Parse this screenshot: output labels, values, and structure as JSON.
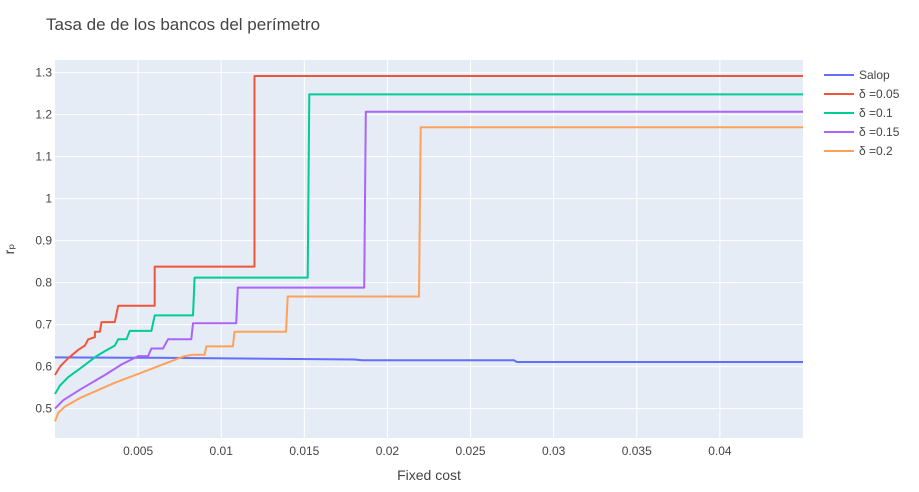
{
  "chart_data": {
    "type": "line",
    "title": "Tasa de de los bancos del perímetro",
    "xlabel": "Fixed cost",
    "ylabel": "rₚ",
    "xlim": [
      0.0,
      0.045
    ],
    "ylim": [
      0.43,
      1.33
    ],
    "x_ticks": [
      0.005,
      0.01,
      0.015,
      0.02,
      0.025,
      0.03,
      0.035,
      0.04
    ],
    "x_tick_labels": [
      "0.005",
      "0.01",
      "0.015",
      "0.02",
      "0.025",
      "0.03",
      "0.035",
      "0.04"
    ],
    "y_ticks": [
      0.5,
      0.6,
      0.7,
      0.8,
      0.9,
      1.0,
      1.1,
      1.2,
      1.3
    ],
    "y_tick_labels": [
      "0.5",
      "0.6",
      "0.7",
      "0.8",
      "0.9",
      "1",
      "1.1",
      "1.2",
      "1.3"
    ],
    "grid": true,
    "plot_background": "#e5ecf6",
    "legend_position": "top-right outside",
    "series": [
      {
        "name": "Salop",
        "color": "#636efa",
        "points": [
          [
            0.0,
            0.622
          ],
          [
            0.006,
            0.621
          ],
          [
            0.012,
            0.619
          ],
          [
            0.018,
            0.617
          ],
          [
            0.0185,
            0.615
          ],
          [
            0.0276,
            0.615
          ],
          [
            0.0278,
            0.611
          ],
          [
            0.045,
            0.611
          ]
        ]
      },
      {
        "name": "δ =0.05",
        "color": "#ef553b",
        "points": [
          [
            0.0,
            0.58
          ],
          [
            0.0003,
            0.6
          ],
          [
            0.0008,
            0.62
          ],
          [
            0.0014,
            0.64
          ],
          [
            0.0018,
            0.65
          ],
          [
            0.002,
            0.665
          ],
          [
            0.0024,
            0.67
          ],
          [
            0.0024,
            0.683
          ],
          [
            0.0027,
            0.683
          ],
          [
            0.0028,
            0.706
          ],
          [
            0.0036,
            0.706
          ],
          [
            0.0038,
            0.745
          ],
          [
            0.006,
            0.745
          ],
          [
            0.006,
            0.838
          ],
          [
            0.012,
            0.838
          ],
          [
            0.012,
            1.292
          ],
          [
            0.045,
            1.292
          ]
        ]
      },
      {
        "name": "δ =0.1",
        "color": "#00cc96",
        "points": [
          [
            0.0,
            0.535
          ],
          [
            0.0003,
            0.555
          ],
          [
            0.0008,
            0.575
          ],
          [
            0.0015,
            0.595
          ],
          [
            0.0025,
            0.625
          ],
          [
            0.003,
            0.637
          ],
          [
            0.0036,
            0.65
          ],
          [
            0.0038,
            0.665
          ],
          [
            0.0043,
            0.665
          ],
          [
            0.0045,
            0.685
          ],
          [
            0.0058,
            0.685
          ],
          [
            0.006,
            0.722
          ],
          [
            0.0083,
            0.722
          ],
          [
            0.0084,
            0.812
          ],
          [
            0.0152,
            0.812
          ],
          [
            0.0153,
            1.248
          ],
          [
            0.045,
            1.248
          ]
        ]
      },
      {
        "name": "δ =0.15",
        "color": "#ab63fa",
        "points": [
          [
            0.0,
            0.5
          ],
          [
            0.0005,
            0.52
          ],
          [
            0.0015,
            0.545
          ],
          [
            0.003,
            0.58
          ],
          [
            0.004,
            0.605
          ],
          [
            0.005,
            0.625
          ],
          [
            0.0056,
            0.625
          ],
          [
            0.0058,
            0.643
          ],
          [
            0.0065,
            0.643
          ],
          [
            0.0068,
            0.665
          ],
          [
            0.0082,
            0.665
          ],
          [
            0.0083,
            0.703
          ],
          [
            0.0109,
            0.703
          ],
          [
            0.011,
            0.788
          ],
          [
            0.0186,
            0.788
          ],
          [
            0.0187,
            1.207
          ],
          [
            0.045,
            1.207
          ]
        ]
      },
      {
        "name": "δ =0.2",
        "color": "#ffa15a",
        "points": [
          [
            0.0,
            0.47
          ],
          [
            0.0002,
            0.49
          ],
          [
            0.0006,
            0.505
          ],
          [
            0.0015,
            0.525
          ],
          [
            0.0035,
            0.56
          ],
          [
            0.0055,
            0.59
          ],
          [
            0.0068,
            0.61
          ],
          [
            0.0078,
            0.625
          ],
          [
            0.0083,
            0.628
          ],
          [
            0.009,
            0.628
          ],
          [
            0.0091,
            0.648
          ],
          [
            0.0107,
            0.648
          ],
          [
            0.0108,
            0.683
          ],
          [
            0.0139,
            0.683
          ],
          [
            0.014,
            0.767
          ],
          [
            0.0219,
            0.767
          ],
          [
            0.022,
            1.17
          ],
          [
            0.045,
            1.17
          ]
        ]
      }
    ]
  }
}
